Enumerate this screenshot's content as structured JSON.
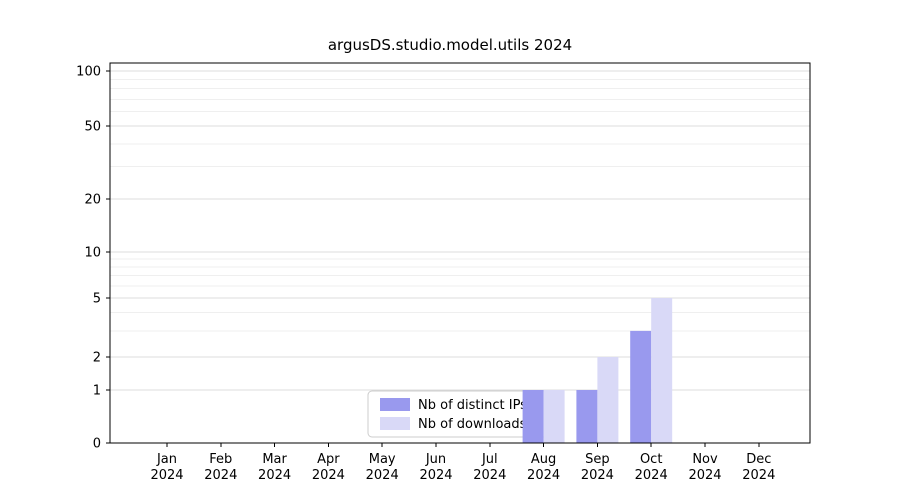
{
  "figure": {
    "background": "#ffffff"
  },
  "colors": {
    "distinct_ips_bar": "#9999ee",
    "downloads_bar": "#d9d9f7",
    "grid_major": "#dddddd",
    "grid_minor": "#efefef",
    "spine": "#000000",
    "legend_border": "#cccccc"
  },
  "chart_data": {
    "type": "bar",
    "title": "argusDS.studio.model.utils 2024",
    "categories": [
      "Jan",
      "Feb",
      "Mar",
      "Apr",
      "May",
      "Jun",
      "Jul",
      "Aug",
      "Sep",
      "Oct",
      "Nov",
      "Dec"
    ],
    "category_year": "2024",
    "series": [
      {
        "name": "Nb of distinct IPs",
        "color": "#9999ee",
        "values": [
          0,
          0,
          0,
          0,
          0,
          0,
          0,
          1,
          1,
          3,
          0,
          0
        ]
      },
      {
        "name": "Nb of downloads",
        "color": "#d9d9f7",
        "values": [
          0,
          0,
          0,
          0,
          0,
          0,
          0,
          1,
          2,
          5,
          0,
          0
        ]
      }
    ],
    "yscale": "symlog",
    "yticks": [
      0,
      1,
      2,
      5,
      10,
      20,
      50,
      100
    ],
    "ytick_labels": [
      "0",
      "1",
      "2",
      "5",
      "10",
      "20",
      "50",
      "100"
    ],
    "ylim": [
      0,
      110
    ],
    "xlabel": "",
    "ylabel": "",
    "grid": true,
    "legend": {
      "position": "lower center",
      "entries": [
        "Nb of distinct IPs",
        "Nb of downloads"
      ]
    }
  }
}
